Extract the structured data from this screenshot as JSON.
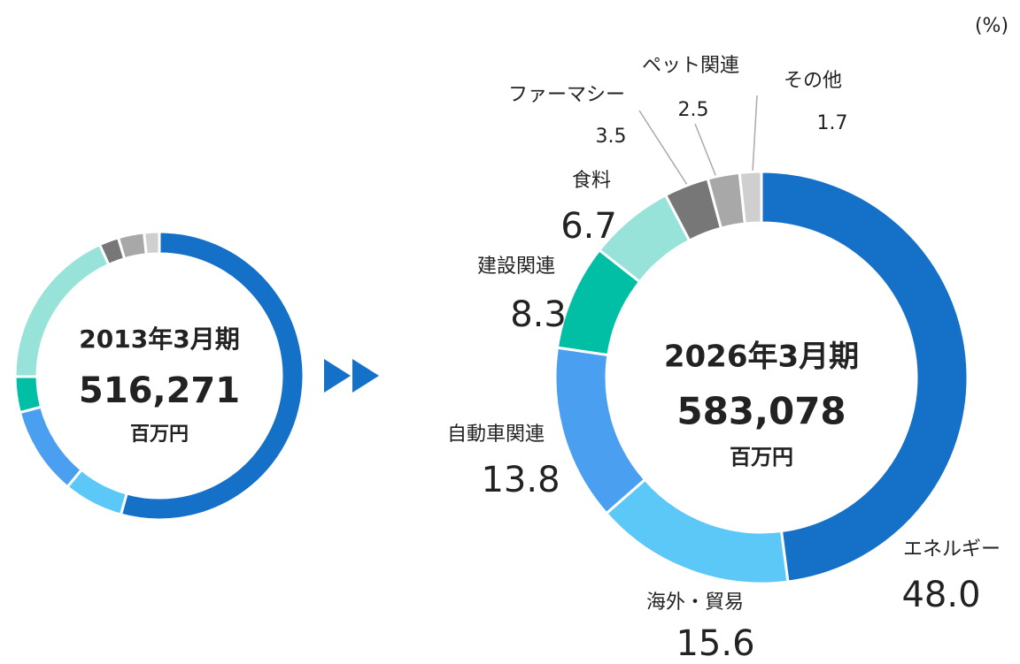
{
  "chart_data": [
    {
      "type": "pie",
      "subtype": "donut",
      "center_title": "2013年3月期",
      "center_value": "516,271",
      "center_unit": "百万円",
      "values": [
        54.3,
        6.7,
        9.9,
        4.0,
        18.3,
        2.2,
        2.9,
        1.7
      ],
      "colors": [
        "#1570c8",
        "#5bc8f8",
        "#4a9ff0",
        "#00bfa5",
        "#97e3d9",
        "#777777",
        "#a8a8a8",
        "#cfcfcf"
      ]
    },
    {
      "type": "pie",
      "subtype": "donut",
      "unit_label": "(%)",
      "center_title": "2026年3月期",
      "center_value": "583,078",
      "center_unit": "百万円",
      "categories": [
        "エネルギー",
        "海外・貿易",
        "自動車関連",
        "建設関連",
        "食料",
        "ファーマシー",
        "ペット関連",
        "その他"
      ],
      "values": [
        48.0,
        15.6,
        13.8,
        8.3,
        6.7,
        3.5,
        2.5,
        1.7
      ],
      "value_labels": [
        "48.0",
        "15.6",
        "13.8",
        "8.3",
        "6.7",
        "3.5",
        "2.5",
        "1.7"
      ],
      "colors": [
        "#1570c8",
        "#5bc8f8",
        "#4a9ff0",
        "#00bfa5",
        "#97e3d9",
        "#777777",
        "#a8a8a8",
        "#cfcfcf"
      ]
    }
  ]
}
